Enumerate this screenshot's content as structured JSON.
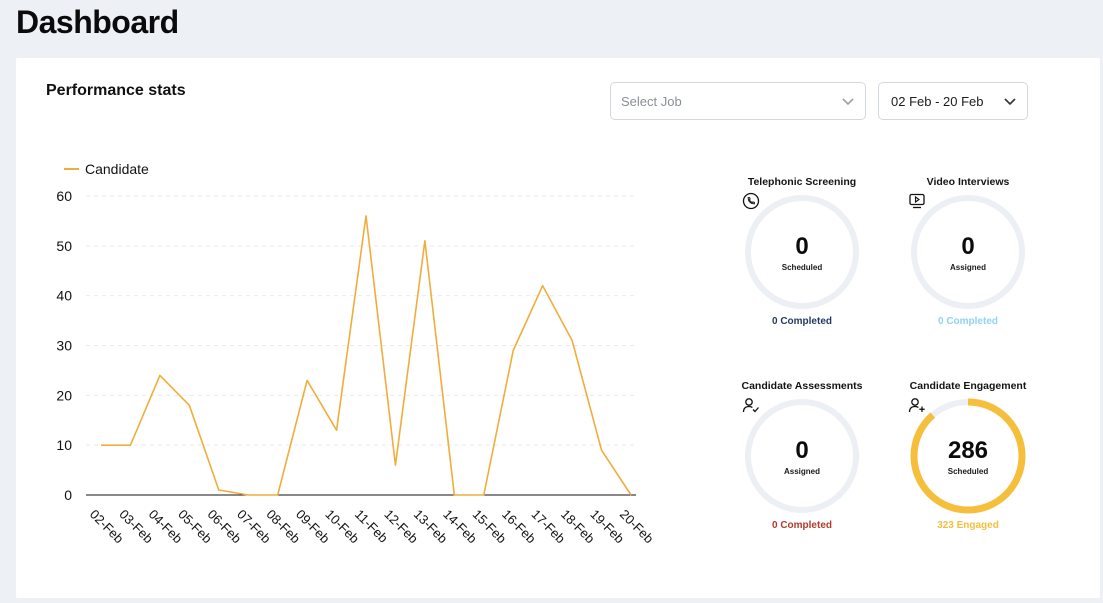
{
  "page": {
    "title": "Dashboard"
  },
  "section": {
    "title": "Performance stats"
  },
  "filters": {
    "job": {
      "placeholder": "Select Job"
    },
    "date_range": {
      "value": "02 Feb - 20 Feb"
    }
  },
  "colors": {
    "series": "#f0ad3d",
    "ring_track": "#eceff3",
    "completed_blue": "#1f3a5f",
    "completed_light": "#8fd3f4",
    "completed_red": "#b23b2b",
    "engaged_yellow": "#f5bf3c"
  },
  "chart_data": {
    "type": "line",
    "legend_position": "top-left",
    "grid": true,
    "x": [
      "02-Feb",
      "03-Feb",
      "04-Feb",
      "05-Feb",
      "06-Feb",
      "07-Feb",
      "08-Feb",
      "09-Feb",
      "10-Feb",
      "11-Feb",
      "12-Feb",
      "13-Feb",
      "14-Feb",
      "15-Feb",
      "16-Feb",
      "17-Feb",
      "18-Feb",
      "19-Feb",
      "20-Feb"
    ],
    "series": [
      {
        "name": "Candidate",
        "values": [
          10,
          10,
          24,
          18,
          1,
          0,
          0,
          23,
          13,
          56,
          6,
          51,
          0,
          0,
          29,
          42,
          31,
          9,
          0
        ]
      }
    ],
    "ylim": [
      0,
      60
    ],
    "yticks": [
      0,
      10,
      20,
      30,
      40,
      50,
      60
    ]
  },
  "stats": [
    {
      "title": "Telephonic Screening",
      "icon": "phone-icon",
      "value": "0",
      "label": "Scheduled",
      "footer": "0 Completed",
      "progress": 0
    },
    {
      "title": "Video Interviews",
      "icon": "video-icon",
      "value": "0",
      "label": "Assigned",
      "footer": "0 Completed",
      "progress": 0
    },
    {
      "title": "Candidate Assessments",
      "icon": "user-check-icon",
      "value": "0",
      "label": "Assigned",
      "footer": "0 Completed",
      "progress": 0
    },
    {
      "title": "Candidate Engagement",
      "icon": "user-plus-icon",
      "value": "286",
      "label": "Scheduled",
      "footer": "323 Engaged",
      "progress": 0.886
    }
  ]
}
